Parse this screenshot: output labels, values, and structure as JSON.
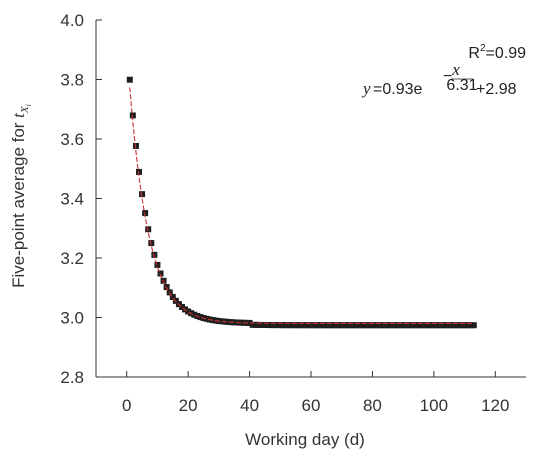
{
  "chart_data": {
    "type": "scatter",
    "xlabel": "Working day (d)",
    "ylabel_prefix": "Five-point average for ",
    "ylabel_var": "t",
    "ylabel_sub": "X",
    "ylabel_subsub": "i",
    "xlim": [
      -10,
      130
    ],
    "ylim": [
      2.8,
      4.0
    ],
    "xticks": [
      0,
      20,
      40,
      60,
      80,
      100,
      120
    ],
    "yticks": [
      2.8,
      3.0,
      3.2,
      3.4,
      3.6,
      3.8,
      4.0
    ],
    "x_range": [
      1,
      113
    ],
    "fit": {
      "a": 0.93,
      "tau": 6.31,
      "c": 2.98
    },
    "annotation": {
      "r2_label": "R",
      "r2_sup": "2",
      "r2_value": "=0.99",
      "eq_lhs": "y",
      "eq_mid": "=0.93e",
      "eq_exp_sign": "−",
      "eq_exp_num": "x",
      "eq_exp_den": "6.31",
      "eq_tail": "+2.98"
    },
    "colors": {
      "points": "#1f1f1f",
      "fit_line": "#d03030",
      "axis": "#333333"
    },
    "grid": false,
    "legend": "none"
  }
}
